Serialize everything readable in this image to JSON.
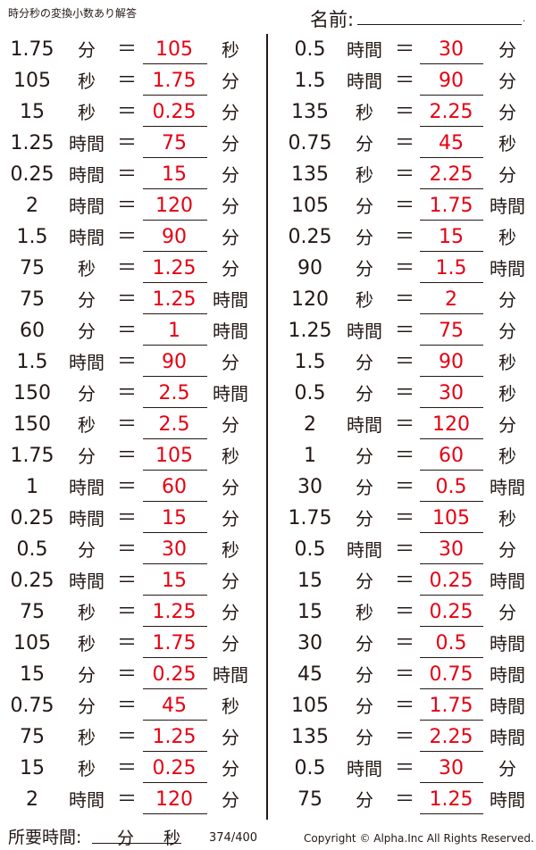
{
  "header": {
    "title": "時分秒の変換小数あり解答",
    "name_label": "名前:",
    "name_dot": "."
  },
  "equals": "＝",
  "left": [
    [
      "1.75",
      "分",
      "105",
      "秒"
    ],
    [
      "105",
      "秒",
      "1.75",
      "分"
    ],
    [
      "15",
      "秒",
      "0.25",
      "分"
    ],
    [
      "1.25",
      "時間",
      "75",
      "分"
    ],
    [
      "0.25",
      "時間",
      "15",
      "分"
    ],
    [
      "2",
      "時間",
      "120",
      "分"
    ],
    [
      "1.5",
      "時間",
      "90",
      "分"
    ],
    [
      "75",
      "秒",
      "1.25",
      "分"
    ],
    [
      "75",
      "分",
      "1.25",
      "時間"
    ],
    [
      "60",
      "分",
      "1",
      "時間"
    ],
    [
      "1.5",
      "時間",
      "90",
      "分"
    ],
    [
      "150",
      "分",
      "2.5",
      "時間"
    ],
    [
      "150",
      "秒",
      "2.5",
      "分"
    ],
    [
      "1.75",
      "分",
      "105",
      "秒"
    ],
    [
      "1",
      "時間",
      "60",
      "分"
    ],
    [
      "0.25",
      "時間",
      "15",
      "分"
    ],
    [
      "0.5",
      "分",
      "30",
      "秒"
    ],
    [
      "0.25",
      "時間",
      "15",
      "分"
    ],
    [
      "75",
      "秒",
      "1.25",
      "分"
    ],
    [
      "105",
      "秒",
      "1.75",
      "分"
    ],
    [
      "15",
      "分",
      "0.25",
      "時間"
    ],
    [
      "0.75",
      "分",
      "45",
      "秒"
    ],
    [
      "75",
      "秒",
      "1.25",
      "分"
    ],
    [
      "15",
      "秒",
      "0.25",
      "分"
    ],
    [
      "2",
      "時間",
      "120",
      "分"
    ]
  ],
  "right": [
    [
      "0.5",
      "時間",
      "30",
      "分"
    ],
    [
      "1.5",
      "時間",
      "90",
      "分"
    ],
    [
      "135",
      "秒",
      "2.25",
      "分"
    ],
    [
      "0.75",
      "分",
      "45",
      "秒"
    ],
    [
      "135",
      "秒",
      "2.25",
      "分"
    ],
    [
      "105",
      "分",
      "1.75",
      "時間"
    ],
    [
      "0.25",
      "分",
      "15",
      "秒"
    ],
    [
      "90",
      "分",
      "1.5",
      "時間"
    ],
    [
      "120",
      "秒",
      "2",
      "分"
    ],
    [
      "1.25",
      "時間",
      "75",
      "分"
    ],
    [
      "1.5",
      "分",
      "90",
      "秒"
    ],
    [
      "0.5",
      "分",
      "30",
      "秒"
    ],
    [
      "2",
      "時間",
      "120",
      "分"
    ],
    [
      "1",
      "分",
      "60",
      "秒"
    ],
    [
      "30",
      "分",
      "0.5",
      "時間"
    ],
    [
      "1.75",
      "分",
      "105",
      "秒"
    ],
    [
      "0.5",
      "時間",
      "30",
      "分"
    ],
    [
      "15",
      "分",
      "0.25",
      "時間"
    ],
    [
      "15",
      "秒",
      "0.25",
      "分"
    ],
    [
      "30",
      "分",
      "0.5",
      "時間"
    ],
    [
      "45",
      "分",
      "0.75",
      "時間"
    ],
    [
      "105",
      "分",
      "1.75",
      "時間"
    ],
    [
      "135",
      "分",
      "2.25",
      "時間"
    ],
    [
      "0.5",
      "時間",
      "30",
      "分"
    ],
    [
      "75",
      "分",
      "1.25",
      "時間"
    ]
  ],
  "colors": {
    "answer": "#e60012",
    "text": "#231815"
  },
  "footer": {
    "time_label": "所要時間:",
    "min": "分",
    "sec": "秒",
    "page": "374/400",
    "copyright": "Copyright © Alpha.Inc All Rights Reserved."
  }
}
